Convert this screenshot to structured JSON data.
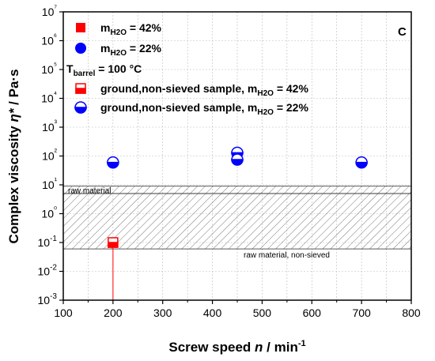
{
  "chart_data": {
    "type": "scatter",
    "panel_label": "C",
    "xlabel": {
      "main": "Screw speed ",
      "var": "n",
      "unit": " / min",
      "sup": "-1"
    },
    "ylabel": {
      "main": "Complex viscosity ",
      "var": "η*",
      "unit": " / Pa·s"
    },
    "xlim": [
      100,
      800
    ],
    "ylim_log10": [
      -3,
      7
    ],
    "y_scale": "log",
    "grid": true,
    "x_ticks": [
      100,
      200,
      300,
      400,
      500,
      600,
      700,
      800
    ],
    "x_tick_labels": [
      "100",
      "200",
      "300",
      "400",
      "500",
      "600",
      "700",
      "800"
    ],
    "y_ticks_exp": [
      -3,
      -2,
      -1,
      0,
      1,
      2,
      3,
      4,
      5,
      6,
      7
    ],
    "y_tick_labels": [
      "10-3",
      "10-2",
      "10-1",
      "10⁰",
      "10¹",
      "10²",
      "10³",
      "10⁴",
      "10⁵",
      "10⁶",
      "10⁷"
    ],
    "legend": {
      "placement": "top-left",
      "items": [
        {
          "key": "m42",
          "base": "m",
          "sub": "H2O",
          "rest": " = 42%",
          "marker": "square-filled"
        },
        {
          "key": "m22",
          "base": "m",
          "sub": "H2O",
          "rest": " = 22%",
          "marker": "circle-filled"
        },
        {
          "key": "tbarrel",
          "base": "T",
          "sub": "barrel",
          "rest": " = 100 °C",
          "marker": "none"
        },
        {
          "key": "g42",
          "base": "ground,non-sieved sample, m",
          "sub": "H2O",
          "rest": " = 42%",
          "marker": "square-half"
        },
        {
          "key": "g22",
          "base": "ground,non-sieved sample, m",
          "sub": "H2O",
          "rest": " = 22%",
          "marker": "circle-half"
        }
      ]
    },
    "bands": [
      {
        "label": "raw material",
        "y_min": 5,
        "y_max": 9
      },
      {
        "label": "raw material, non-sieved",
        "y_min": 0.06,
        "y_max": 5
      }
    ],
    "series": [
      {
        "name": "ground,non-sieved sample, mH2O = 42%",
        "marker": "square-half",
        "color": "#ff0000",
        "points": [
          {
            "x": 200,
            "y": 0.1,
            "y_err_low": 0.001
          }
        ]
      },
      {
        "name": "ground,non-sieved sample, mH2O = 22%",
        "marker": "circle-half",
        "color": "#0000ff",
        "points": [
          {
            "x": 200,
            "y": 60
          },
          {
            "x": 450,
            "y": 130
          },
          {
            "x": 450,
            "y": 75
          },
          {
            "x": 700,
            "y": 60
          }
        ]
      }
    ],
    "colors": {
      "red": "#ff0000",
      "blue": "#0000ff",
      "band_stroke": "#333333",
      "grid": "#bbbbbb"
    }
  }
}
